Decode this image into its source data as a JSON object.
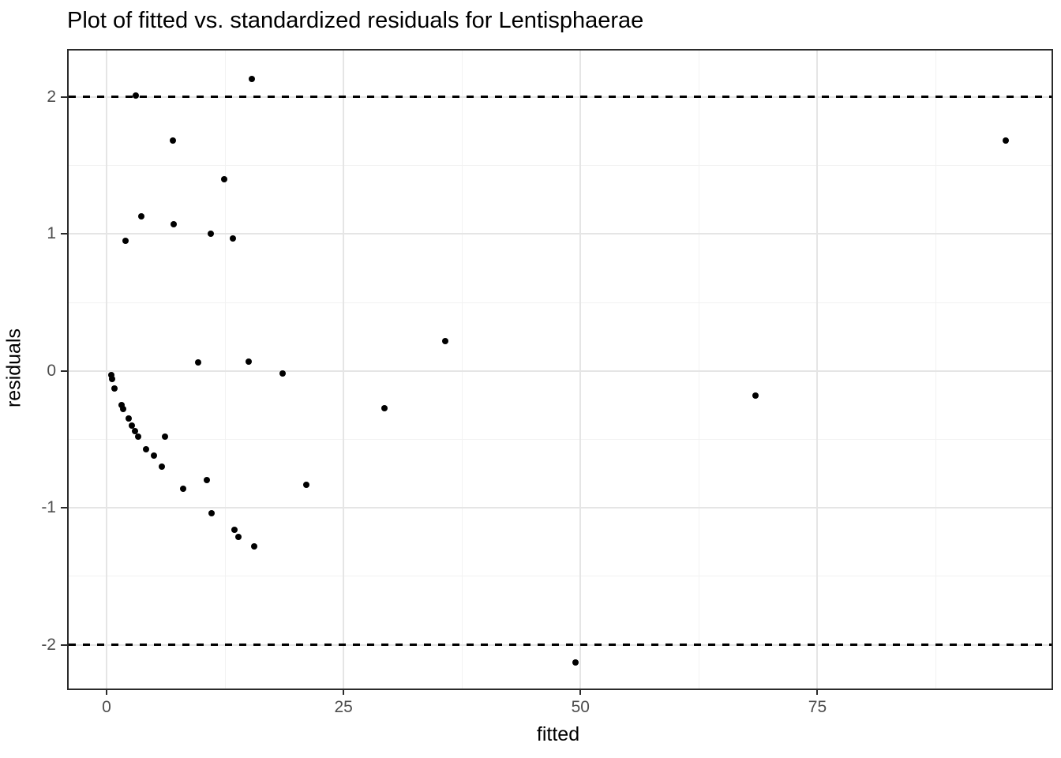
{
  "chart_data": {
    "type": "scatter",
    "title": "Plot of fitted vs. standardized residuals for Lentisphaerae",
    "xlabel": "fitted",
    "ylabel": "residuals",
    "xlim": [
      -4.0,
      99.7
    ],
    "ylim": [
      -2.32,
      2.34
    ],
    "x_ticks": [
      0,
      25,
      50,
      75
    ],
    "y_ticks": [
      -2,
      -1,
      0,
      1,
      2
    ],
    "x_minor_ticks": [
      12.5,
      37.5,
      62.5,
      87.5
    ],
    "y_minor_ticks": [
      -1.5,
      -0.5,
      0.5,
      1.5
    ],
    "reference_lines": [
      {
        "y": 2,
        "style": "dashed",
        "color": "#000000"
      },
      {
        "y": -2,
        "style": "dashed",
        "color": "#000000"
      }
    ],
    "legend": "none",
    "grid": true,
    "point_color": "#000000",
    "grid_major_color": "#e5e5e5",
    "grid_minor_color": "#f2f2f2",
    "tick_label_color": "#4d4d4d",
    "points": [
      [
        0.5,
        -0.03
      ],
      [
        0.6,
        -0.06
      ],
      [
        0.8,
        -0.13
      ],
      [
        1.55,
        -0.25
      ],
      [
        1.75,
        -0.28
      ],
      [
        2.3,
        -0.35
      ],
      [
        2.65,
        -0.4
      ],
      [
        3.0,
        -0.44
      ],
      [
        3.3,
        -0.48
      ],
      [
        4.2,
        -0.57
      ],
      [
        5.0,
        -0.62
      ],
      [
        5.8,
        -0.7
      ],
      [
        6.2,
        -0.48
      ],
      [
        8.1,
        -0.86
      ],
      [
        10.6,
        -0.8
      ],
      [
        11.1,
        -1.04
      ],
      [
        13.5,
        -1.16
      ],
      [
        13.9,
        -1.21
      ],
      [
        15.6,
        -1.28
      ],
      [
        21.1,
        -0.83
      ],
      [
        9.7,
        0.06
      ],
      [
        15.0,
        0.07
      ],
      [
        18.6,
        -0.02
      ],
      [
        29.3,
        -0.27
      ],
      [
        35.7,
        0.22
      ],
      [
        68.5,
        -0.18
      ],
      [
        49.5,
        -2.13
      ],
      [
        2.0,
        0.95
      ],
      [
        3.7,
        1.13
      ],
      [
        7.1,
        1.07
      ],
      [
        11.0,
        1.0
      ],
      [
        13.3,
        0.97
      ],
      [
        3.1,
        2.01
      ],
      [
        7.0,
        1.68
      ],
      [
        12.4,
        1.4
      ],
      [
        15.3,
        2.13
      ],
      [
        94.9,
        1.68
      ]
    ]
  }
}
